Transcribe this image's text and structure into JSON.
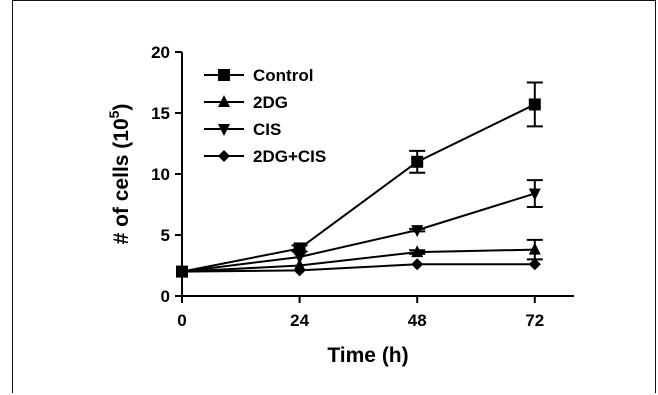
{
  "chart_data": {
    "type": "line",
    "title": "",
    "xlabel": "Time (h)",
    "ylabel": "# of cells (10",
    "ylabel_superscript": "5",
    "ylabel_suffix": ")",
    "x": [
      0,
      24,
      48,
      72
    ],
    "x_tick_labels": [
      "0",
      "24",
      "48",
      "72"
    ],
    "xlim": [
      0,
      80
    ],
    "ylim": [
      0,
      20
    ],
    "y_ticks": [
      0,
      5,
      10,
      15,
      20
    ],
    "y_tick_labels": [
      "0",
      "5",
      "10",
      "15",
      "20"
    ],
    "grid": false,
    "legend_position": "top-left",
    "series": [
      {
        "name": "Control",
        "marker": "square",
        "values": [
          2.0,
          3.9,
          11.0,
          15.7
        ],
        "error": [
          0,
          0.25,
          0.9,
          1.8
        ]
      },
      {
        "name": "2DG",
        "marker": "triangle-up",
        "values": [
          2.0,
          2.5,
          3.6,
          3.8
        ],
        "error": [
          0,
          0,
          0.15,
          0.8
        ]
      },
      {
        "name": "CIS",
        "marker": "triangle-down",
        "values": [
          2.0,
          3.2,
          5.4,
          8.4
        ],
        "error": [
          0,
          0,
          0.1,
          1.1
        ]
      },
      {
        "name": "2DG+CIS",
        "marker": "diamond",
        "values": [
          2.0,
          2.1,
          2.6,
          2.6
        ],
        "error": [
          0,
          0,
          0,
          0
        ]
      }
    ],
    "colors": {
      "line": "#000000"
    }
  }
}
